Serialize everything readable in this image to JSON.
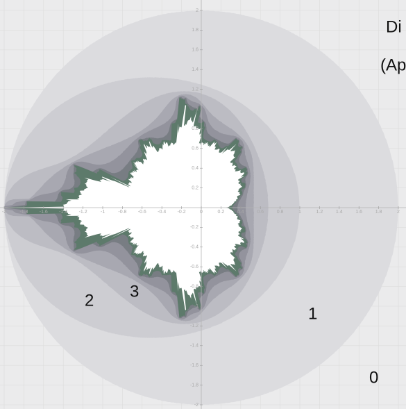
{
  "heading_fragments": [
    "Di",
    "(Ap"
  ],
  "level_labels": [
    "0",
    "1",
    "2",
    "3"
  ],
  "axes": {
    "xticks": [
      -2,
      -1.8,
      -1.6,
      -1.4,
      -1.2,
      -1,
      -0.8,
      -0.6,
      -0.4,
      -0.2,
      0,
      0.2,
      0.4,
      0.6,
      0.8,
      1,
      1.2,
      1.4,
      1.6,
      1.8,
      2
    ],
    "yticks": [
      -2,
      -1.8,
      -1.6,
      -1.4,
      -1.2,
      -1,
      -0.8,
      -0.6,
      -0.4,
      -0.2,
      0.2,
      0.4,
      0.6,
      0.8,
      1,
      1.2,
      1.4,
      1.6,
      1.8,
      2
    ]
  }
}
